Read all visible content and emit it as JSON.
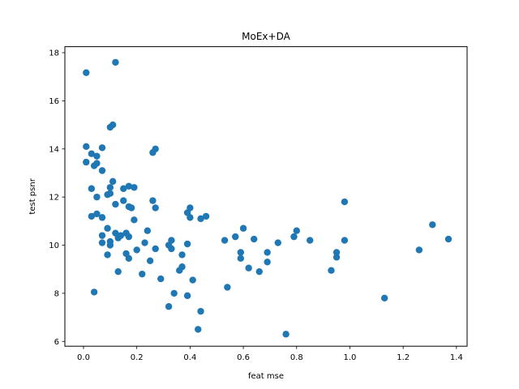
{
  "chart_data": {
    "type": "scatter",
    "title": "MoEx+DA",
    "xlabel": "feat mse",
    "ylabel": "test psnr",
    "xlim": [
      -0.07,
      1.44
    ],
    "ylim": [
      5.8,
      18.25
    ],
    "xticks": [
      0.0,
      0.2,
      0.4,
      0.6,
      0.8,
      1.0,
      1.2,
      1.4
    ],
    "xtick_labels": [
      "0.0",
      "0.2",
      "0.4",
      "0.6",
      "0.8",
      "1.0",
      "1.2",
      "1.4"
    ],
    "yticks": [
      6,
      8,
      10,
      12,
      14,
      16,
      18
    ],
    "ytick_labels": [
      "6",
      "8",
      "10",
      "12",
      "14",
      "16",
      "18"
    ],
    "grid": false,
    "marker_color": "#1f77b4",
    "series": [
      {
        "points": [
          [
            0.01,
            17.17
          ],
          [
            0.12,
            17.6
          ],
          [
            0.01,
            14.1
          ],
          [
            0.1,
            14.9
          ],
          [
            0.11,
            15.0
          ],
          [
            0.07,
            14.05
          ],
          [
            0.26,
            13.85
          ],
          [
            0.27,
            14.0
          ],
          [
            0.03,
            13.8
          ],
          [
            0.05,
            13.7
          ],
          [
            0.01,
            13.45
          ],
          [
            0.04,
            13.3
          ],
          [
            0.05,
            13.4
          ],
          [
            0.07,
            13.1
          ],
          [
            0.03,
            12.35
          ],
          [
            0.05,
            12.0
          ],
          [
            0.09,
            12.1
          ],
          [
            0.1,
            12.15
          ],
          [
            0.11,
            12.65
          ],
          [
            0.1,
            12.4
          ],
          [
            0.15,
            12.35
          ],
          [
            0.17,
            12.45
          ],
          [
            0.19,
            12.4
          ],
          [
            0.15,
            11.85
          ],
          [
            0.12,
            11.7
          ],
          [
            0.17,
            11.6
          ],
          [
            0.18,
            11.55
          ],
          [
            0.26,
            11.85
          ],
          [
            0.27,
            11.55
          ],
          [
            0.03,
            11.2
          ],
          [
            0.05,
            11.3
          ],
          [
            0.07,
            11.15
          ],
          [
            0.19,
            11.05
          ],
          [
            0.39,
            11.35
          ],
          [
            0.4,
            11.55
          ],
          [
            0.4,
            11.15
          ],
          [
            0.44,
            11.1
          ],
          [
            0.46,
            11.2
          ],
          [
            0.98,
            11.8
          ],
          [
            0.09,
            10.7
          ],
          [
            0.12,
            10.5
          ],
          [
            0.13,
            10.3
          ],
          [
            0.07,
            10.4
          ],
          [
            0.07,
            10.1
          ],
          [
            0.1,
            10.15
          ],
          [
            0.1,
            10.0
          ],
          [
            0.14,
            10.4
          ],
          [
            0.16,
            10.5
          ],
          [
            0.17,
            10.35
          ],
          [
            0.16,
            10.5
          ],
          [
            0.24,
            10.6
          ],
          [
            0.23,
            10.1
          ],
          [
            0.2,
            9.8
          ],
          [
            0.09,
            9.6
          ],
          [
            0.16,
            9.65
          ],
          [
            0.17,
            9.45
          ],
          [
            0.27,
            9.85
          ],
          [
            0.25,
            9.35
          ],
          [
            0.32,
            10.0
          ],
          [
            0.33,
            10.2
          ],
          [
            0.33,
            9.85
          ],
          [
            0.39,
            10.05
          ],
          [
            0.37,
            9.6
          ],
          [
            0.37,
            9.1
          ],
          [
            0.36,
            8.95
          ],
          [
            0.29,
            8.6
          ],
          [
            0.22,
            8.8
          ],
          [
            0.13,
            8.9
          ],
          [
            0.04,
            8.05
          ],
          [
            0.34,
            8.0
          ],
          [
            0.39,
            7.9
          ],
          [
            0.41,
            8.55
          ],
          [
            0.32,
            7.45
          ],
          [
            0.44,
            7.25
          ],
          [
            0.43,
            6.5
          ],
          [
            0.53,
            10.2
          ],
          [
            0.57,
            10.35
          ],
          [
            0.6,
            10.7
          ],
          [
            0.64,
            10.25
          ],
          [
            0.59,
            9.7
          ],
          [
            0.59,
            9.45
          ],
          [
            0.62,
            9.05
          ],
          [
            0.66,
            8.9
          ],
          [
            0.69,
            9.7
          ],
          [
            0.69,
            9.3
          ],
          [
            0.54,
            8.25
          ],
          [
            0.73,
            10.1
          ],
          [
            0.79,
            10.35
          ],
          [
            0.8,
            10.6
          ],
          [
            0.85,
            10.2
          ],
          [
            0.93,
            8.95
          ],
          [
            0.95,
            9.7
          ],
          [
            0.95,
            9.5
          ],
          [
            0.98,
            10.2
          ],
          [
            0.76,
            6.3
          ],
          [
            1.13,
            7.8
          ],
          [
            1.26,
            9.8
          ],
          [
            1.31,
            10.85
          ],
          [
            1.37,
            10.25
          ]
        ]
      }
    ]
  }
}
